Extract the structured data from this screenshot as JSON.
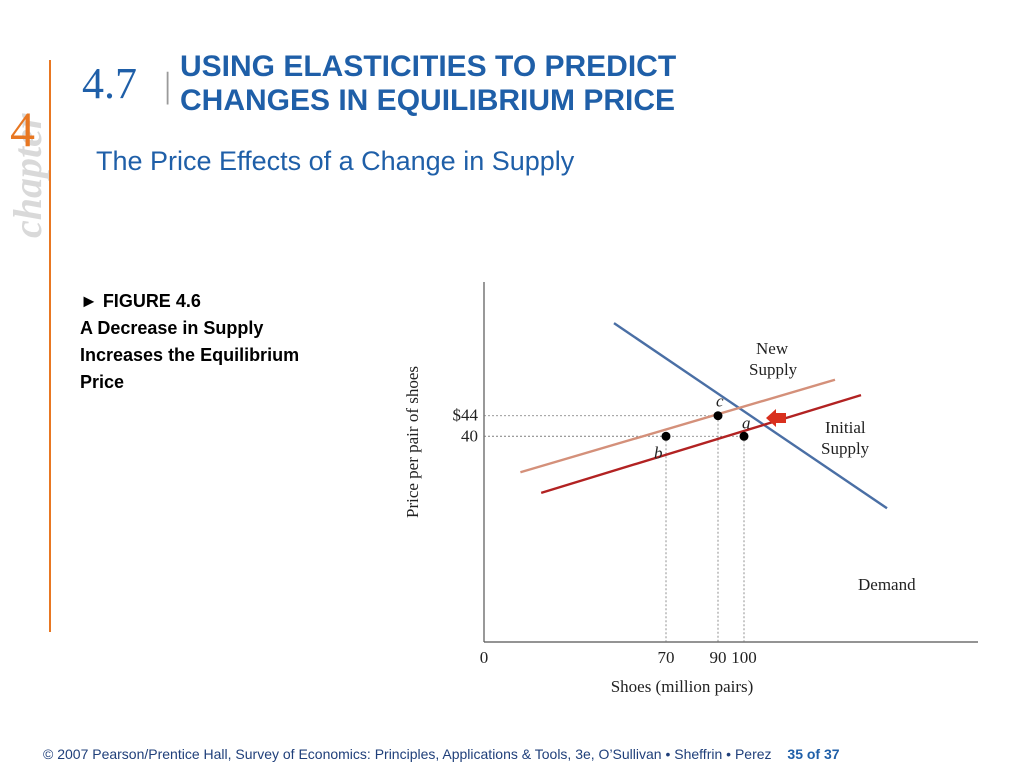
{
  "sidebar": {
    "chapter_word": "chapter",
    "chapter_number": "4"
  },
  "header": {
    "section_number": "4.7",
    "separator": "|",
    "title_line1": "USING ELASTICITIES TO PREDICT",
    "title_line2": "CHANGES IN EQUILIBRIUM PRICE",
    "subtitle": "The Price Effects of a Change in Supply"
  },
  "figure_caption": {
    "line1": "► FIGURE 4.6",
    "line2": "A Decrease in Supply",
    "line3": "Increases the Equilibrium",
    "line4": "Price"
  },
  "chart_data": {
    "type": "line",
    "xlabel": "Shoes (million pairs)",
    "ylabel": "Price per pair of shoes",
    "x_ticks": [
      "0",
      "70",
      "90",
      "100"
    ],
    "y_ticks": [
      "$44",
      "40"
    ],
    "series": [
      {
        "name": "Demand",
        "label": "Demand",
        "color": "#4a6fa5",
        "points": [
          [
            50,
            62
          ],
          [
            155,
            26
          ]
        ]
      },
      {
        "name": "New Supply",
        "label_lines": [
          "New",
          "Supply"
        ],
        "color": "#d4907a",
        "points": [
          [
            14,
            33
          ],
          [
            135,
            51
          ]
        ]
      },
      {
        "name": "Initial Supply",
        "label_lines": [
          "Initial",
          "Supply"
        ],
        "color": "#b22222",
        "points": [
          [
            22,
            29
          ],
          [
            145,
            48
          ]
        ]
      }
    ],
    "points": [
      {
        "label": "a",
        "x": 100,
        "y": 40
      },
      {
        "label": "b",
        "x": 70,
        "y": 40
      },
      {
        "label": "c",
        "x": 90,
        "y": 44
      }
    ],
    "shift_arrow": {
      "direction": "left",
      "color": "#d9301e"
    },
    "xlim": [
      0,
      190
    ],
    "ylim": [
      0,
      70
    ]
  },
  "footer": {
    "credit": "© 2007 Pearson/Prentice Hall, Survey of Economics: Principles, Applications & Tools, 3e, O’Sullivan • Sheffrin • Perez",
    "page": "35 of 37"
  }
}
